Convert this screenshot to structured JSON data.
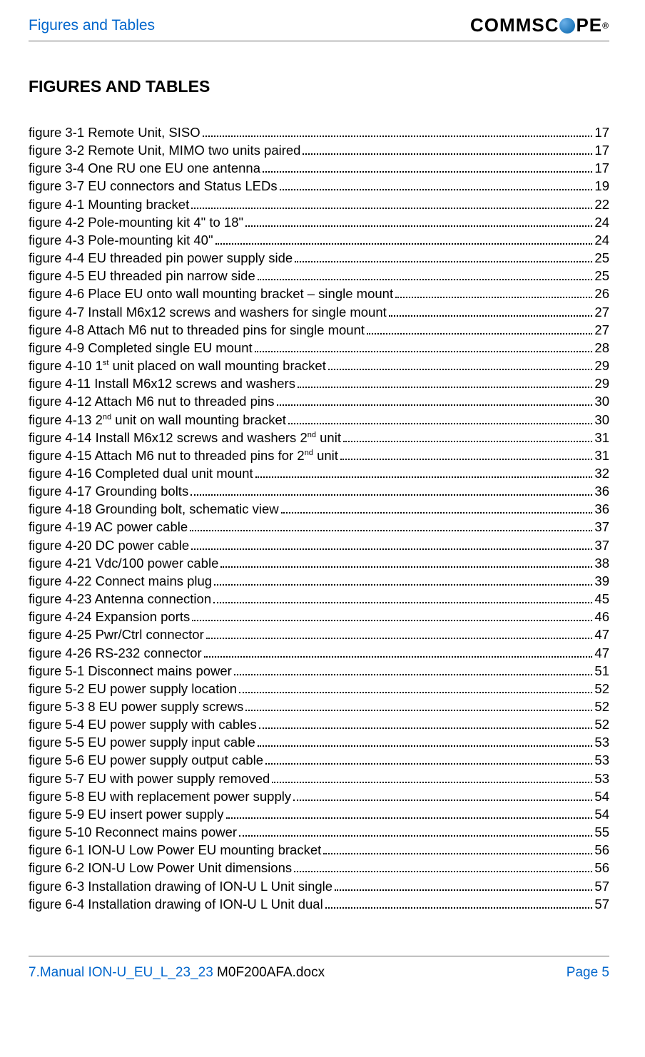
{
  "header": {
    "left": "Figures and Tables",
    "logo_text_before": "COMMSC",
    "logo_text_after": "PE",
    "logo_reg": "®"
  },
  "section_title": "FIGURES AND TABLES",
  "toc": [
    {
      "label": "figure 3-1 Remote Unit, SISO",
      "page": "17"
    },
    {
      "label": "figure 3-2 Remote Unit, MIMO two units paired",
      "page": "17"
    },
    {
      "label": "figure 3-4 One RU one EU one antenna",
      "page": "17"
    },
    {
      "label": "figure 3-7 EU connectors and Status LEDs",
      "page": "19"
    },
    {
      "label": "figure 4-1 Mounting bracket",
      "page": "22"
    },
    {
      "label": "figure 4-2 Pole-mounting kit 4\" to 18\"",
      "page": "24"
    },
    {
      "label": "figure 4-3 Pole-mounting kit 40\"",
      "page": "24"
    },
    {
      "label": "figure 4-4 EU threaded pin power supply side",
      "page": "25"
    },
    {
      "label": "figure 4-5 EU threaded pin narrow side",
      "page": "25"
    },
    {
      "label": "figure 4-6 Place EU onto wall mounting bracket – single mount",
      "page": "26"
    },
    {
      "label": "figure 4-7 Install M6x12 screws and washers for single mount",
      "page": "27"
    },
    {
      "label": "figure 4-8 Attach M6 nut to threaded pins for single mount",
      "page": "27"
    },
    {
      "label": "figure 4-9 Completed single EU mount",
      "page": "28"
    },
    {
      "label_html": "figure 4-10 1<sup>st</sup> unit placed on wall mounting bracket",
      "page": "29"
    },
    {
      "label": "figure 4-11 Install M6x12 screws and washers",
      "page": "29"
    },
    {
      "label": "figure 4-12 Attach M6 nut to threaded pins",
      "page": "30"
    },
    {
      "label_html": "figure 4-13 2<sup>nd</sup> unit on wall mounting bracket",
      "page": "30"
    },
    {
      "label_html": "figure 4-14 Install M6x12 screws and washers 2<sup>nd</sup> unit",
      "page": "31"
    },
    {
      "label_html": "figure 4-15 Attach M6 nut to threaded pins for 2<sup>nd</sup> unit",
      "page": "31"
    },
    {
      "label": "figure 4-16 Completed dual unit mount",
      "page": "32"
    },
    {
      "label": "figure 4-17 Grounding bolts",
      "page": "36"
    },
    {
      "label": "figure 4-18 Grounding bolt, schematic view",
      "page": "36"
    },
    {
      "label": "figure 4-19 AC power cable",
      "page": "37"
    },
    {
      "label": "figure 4-20 DC power cable",
      "page": "37"
    },
    {
      "label": "figure 4-21 Vdc/100 power cable",
      "page": "38"
    },
    {
      "label": "figure 4-22 Connect mains plug",
      "page": "39"
    },
    {
      "label": "figure 4-23 Antenna connection",
      "page": "45"
    },
    {
      "label": "figure 4-24 Expansion ports",
      "page": "46"
    },
    {
      "label": "figure 4-25 Pwr/Ctrl connector",
      "page": "47"
    },
    {
      "label": "figure 4-26 RS-232 connector",
      "page": "47"
    },
    {
      "label": "figure 5-1 Disconnect mains power",
      "page": "51"
    },
    {
      "label": "figure 5-2 EU power supply location",
      "page": "52"
    },
    {
      "label": "figure 5-3 8 EU power supply screws",
      "page": "52"
    },
    {
      "label": "figure 5-4 EU power supply with cables",
      "page": "52"
    },
    {
      "label": "figure 5-5 EU power supply input cable",
      "page": "53"
    },
    {
      "label": "figure 5-6 EU power supply output cable",
      "page": "53"
    },
    {
      "label": "figure 5-7 EU with power supply removed",
      "page": "53"
    },
    {
      "label": "figure 5-8 EU with replacement power supply",
      "page": "54"
    },
    {
      "label": "figure 5-9 EU insert power supply",
      "page": "54"
    },
    {
      "label": "figure 5-10 Reconnect mains power",
      "page": "55"
    },
    {
      "label": "figure 6-1 ION-U Low Power EU mounting bracket",
      "page": "56"
    },
    {
      "label": "figure 6-2 ION-U Low Power Unit dimensions",
      "page": "56"
    },
    {
      "label": "figure 6-3 Installation drawing of ION-U L Unit single",
      "page": "57"
    },
    {
      "label": "figure 6-4 Installation drawing of ION-U L Unit dual",
      "page": "57"
    }
  ],
  "footer": {
    "left_blue": "7.Manual ION-U_EU_L_23_23 ",
    "left_black": "M0F200AFA.docx",
    "right": "Page 5"
  },
  "colors": {
    "link_blue": "#0066cc",
    "text": "#000000",
    "rule": "#666666",
    "bg": "#ffffff"
  },
  "typography": {
    "body_fontsize": 18.5,
    "title_fontsize": 23,
    "header_fontsize": 21,
    "footer_fontsize": 19,
    "font_family": "Arial"
  }
}
